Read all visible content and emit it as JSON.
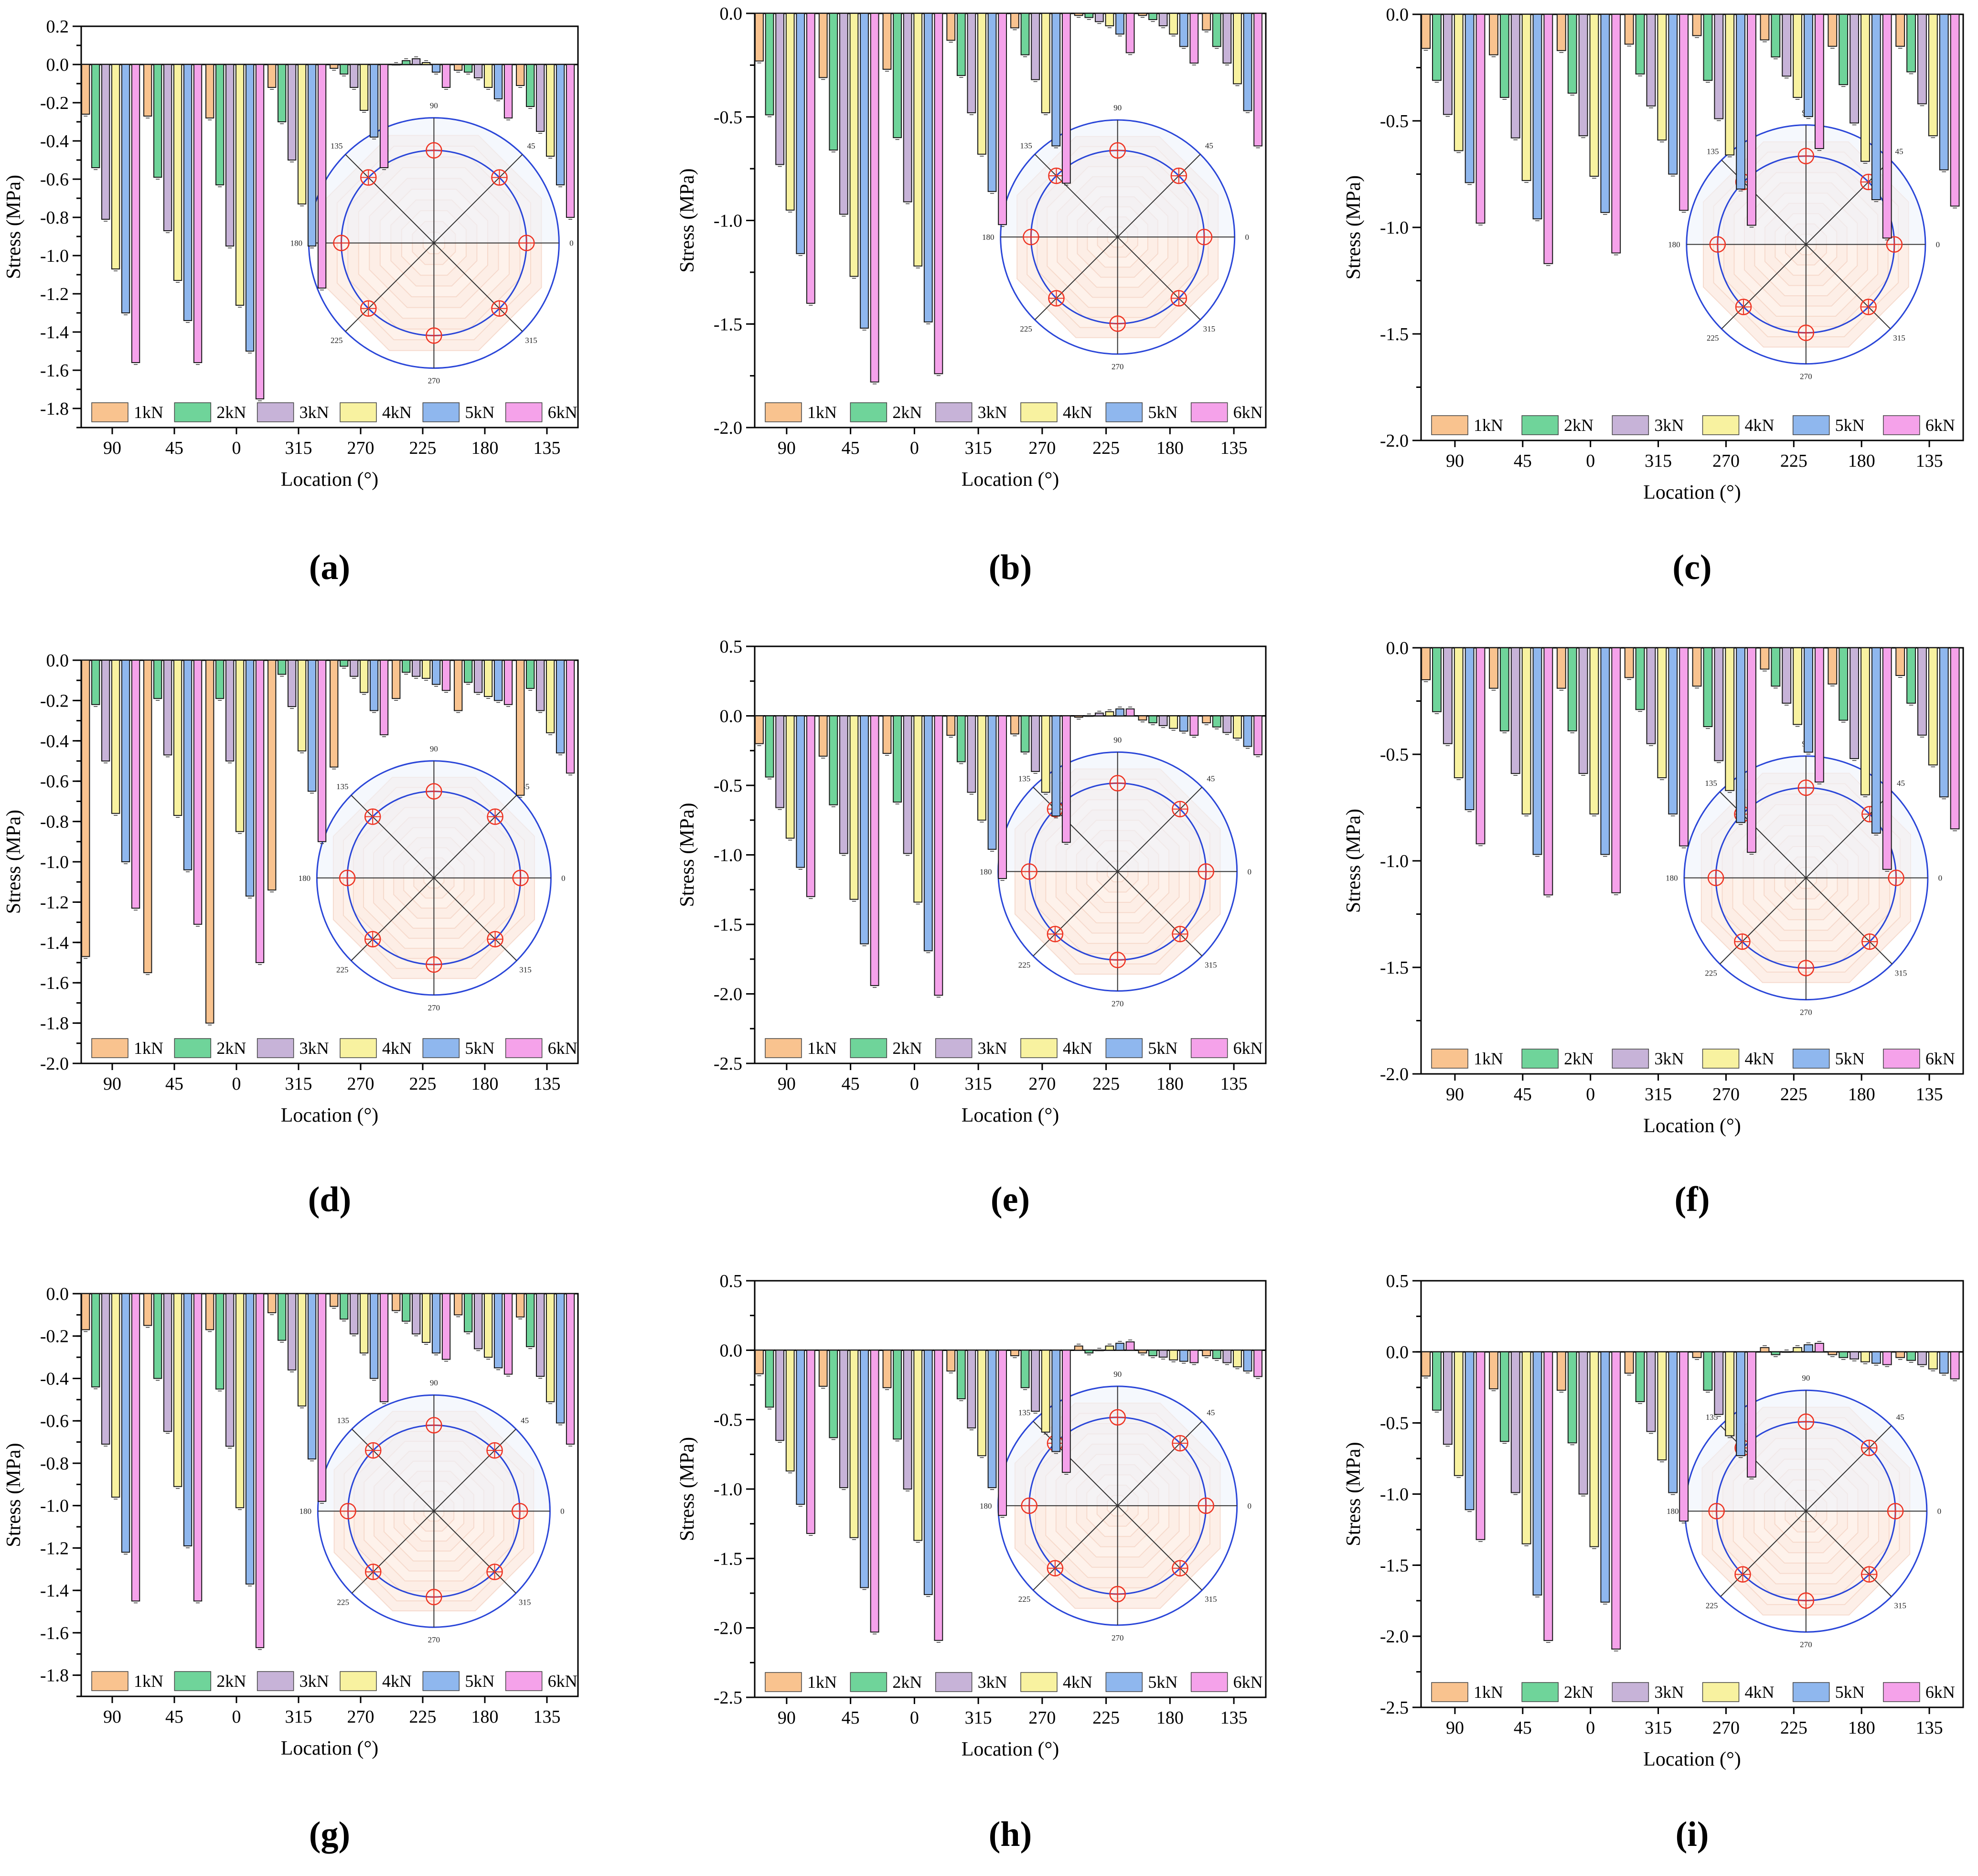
{
  "figure": {
    "legend_series": [
      "1kN",
      "2kN",
      "3kN",
      "4kN",
      "5kN",
      "6kN"
    ],
    "categories": [
      "90",
      "45",
      "0",
      "315",
      "270",
      "225",
      "180",
      "135"
    ],
    "polar_labels": [
      "90",
      "45",
      "0",
      "315",
      "270",
      "225",
      "180",
      "135"
    ],
    "series_colors": [
      "#f9c38f",
      "#6fd49a",
      "#c7b3d8",
      "#f8f2a0",
      "#8fb7ee",
      "#f5a2ea"
    ],
    "bar_edge_color": "#1a1a1a",
    "polar_circle_color": "#2a46d8",
    "marker_color": "#ee3322"
  },
  "chart_data": [
    {
      "type": "bar",
      "label": "(a)",
      "xlabel": "Location (°)",
      "ylabel": "Stress (MPa)",
      "ylim": [
        -1.9,
        0.2
      ],
      "yticks": [
        0.2,
        0.0,
        -0.2,
        -0.4,
        -0.6,
        -0.8,
        -1.0,
        -1.2,
        -1.4,
        -1.6,
        -1.8
      ],
      "categories": [
        "90",
        "45",
        "0",
        "315",
        "270",
        "225",
        "180",
        "135"
      ],
      "series": [
        {
          "name": "1kN",
          "values": [
            -0.26,
            -0.27,
            -0.28,
            -0.12,
            -0.02,
            0.0,
            -0.03,
            -0.11
          ]
        },
        {
          "name": "2kN",
          "values": [
            -0.54,
            -0.59,
            -0.63,
            -0.3,
            -0.05,
            0.02,
            -0.04,
            -0.22
          ]
        },
        {
          "name": "3kN",
          "values": [
            -0.81,
            -0.87,
            -0.95,
            -0.5,
            -0.12,
            0.03,
            -0.07,
            -0.35
          ]
        },
        {
          "name": "4kN",
          "values": [
            -1.07,
            -1.13,
            -1.26,
            -0.73,
            -0.24,
            0.01,
            -0.12,
            -0.48
          ]
        },
        {
          "name": "5kN",
          "values": [
            -1.3,
            -1.34,
            -1.5,
            -0.95,
            -0.38,
            -0.04,
            -0.18,
            -0.63
          ]
        },
        {
          "name": "6kN",
          "values": [
            -1.56,
            -1.56,
            -1.75,
            -1.17,
            -0.54,
            -0.12,
            -0.28,
            -0.8
          ]
        }
      ]
    },
    {
      "type": "bar",
      "label": "(b)",
      "xlabel": "Location (°)",
      "ylabel": "Stress (MPa)",
      "ylim": [
        -2.0,
        0.0
      ],
      "yticks": [
        0.0,
        -0.5,
        -1.0,
        -1.5,
        -2.0
      ],
      "categories": [
        "90",
        "45",
        "0",
        "315",
        "270",
        "225",
        "180",
        "135"
      ],
      "series": [
        {
          "name": "1kN",
          "values": [
            -0.23,
            -0.31,
            -0.27,
            -0.13,
            -0.07,
            -0.01,
            -0.01,
            -0.08
          ]
        },
        {
          "name": "2kN",
          "values": [
            -0.49,
            -0.66,
            -0.6,
            -0.3,
            -0.2,
            -0.02,
            -0.03,
            -0.16
          ]
        },
        {
          "name": "3kN",
          "values": [
            -0.73,
            -0.97,
            -0.91,
            -0.48,
            -0.32,
            -0.04,
            -0.06,
            -0.24
          ]
        },
        {
          "name": "4kN",
          "values": [
            -0.95,
            -1.27,
            -1.22,
            -0.68,
            -0.48,
            -0.06,
            -0.1,
            -0.34
          ]
        },
        {
          "name": "5kN",
          "values": [
            -1.16,
            -1.52,
            -1.49,
            -0.86,
            -0.64,
            -0.1,
            -0.16,
            -0.47
          ]
        },
        {
          "name": "6kN",
          "values": [
            -1.4,
            -1.78,
            -1.74,
            -1.02,
            -0.82,
            -0.19,
            -0.24,
            -0.64
          ]
        }
      ]
    },
    {
      "type": "bar",
      "label": "(c)",
      "xlabel": "Location (°)",
      "ylabel": "Stress (MPa)",
      "ylim": [
        -2.0,
        0.0
      ],
      "yticks": [
        0.0,
        -0.5,
        -1.0,
        -1.5,
        -2.0
      ],
      "categories": [
        "90",
        "45",
        "0",
        "315",
        "270",
        "225",
        "180",
        "135"
      ],
      "series": [
        {
          "name": "1kN",
          "values": [
            -0.16,
            -0.19,
            -0.17,
            -0.14,
            -0.1,
            -0.12,
            -0.15,
            -0.15
          ]
        },
        {
          "name": "2kN",
          "values": [
            -0.31,
            -0.39,
            -0.37,
            -0.28,
            -0.31,
            -0.2,
            -0.33,
            -0.27
          ]
        },
        {
          "name": "3kN",
          "values": [
            -0.47,
            -0.58,
            -0.57,
            -0.43,
            -0.49,
            -0.29,
            -0.51,
            -0.42
          ]
        },
        {
          "name": "4kN",
          "values": [
            -0.64,
            -0.78,
            -0.76,
            -0.59,
            -0.66,
            -0.39,
            -0.69,
            -0.57
          ]
        },
        {
          "name": "5kN",
          "values": [
            -0.79,
            -0.96,
            -0.93,
            -0.75,
            -0.82,
            -0.48,
            -0.87,
            -0.73
          ]
        },
        {
          "name": "6kN",
          "values": [
            -0.98,
            -1.17,
            -1.12,
            -0.92,
            -0.99,
            -0.63,
            -1.05,
            -0.9
          ]
        }
      ]
    },
    {
      "type": "bar",
      "label": "(d)",
      "xlabel": "Location (°)",
      "ylabel": "Stress (MPa)",
      "ylim": [
        -2.0,
        0.0
      ],
      "yticks": [
        0.0,
        -0.2,
        -0.4,
        -0.6,
        -0.8,
        -1.0,
        -1.2,
        -1.4,
        -1.6,
        -1.8,
        -2.0
      ],
      "categories": [
        "90",
        "45",
        "0",
        "315",
        "270",
        "225",
        "180",
        "135"
      ],
      "series": [
        {
          "name": "1kN",
          "values": [
            -1.47,
            -1.55,
            -1.8,
            -1.14,
            -0.53,
            -0.19,
            -0.25,
            -0.67
          ]
        },
        {
          "name": "2kN",
          "values": [
            -0.22,
            -0.19,
            -0.19,
            -0.07,
            -0.03,
            -0.06,
            -0.11,
            -0.14
          ]
        },
        {
          "name": "3kN",
          "values": [
            -0.5,
            -0.47,
            -0.5,
            -0.23,
            -0.08,
            -0.08,
            -0.16,
            -0.25
          ]
        },
        {
          "name": "4kN",
          "values": [
            -0.76,
            -0.77,
            -0.85,
            -0.45,
            -0.16,
            -0.09,
            -0.18,
            -0.36
          ]
        },
        {
          "name": "5kN",
          "values": [
            -1.0,
            -1.04,
            -1.17,
            -0.65,
            -0.25,
            -0.12,
            -0.2,
            -0.46
          ]
        },
        {
          "name": "6kN",
          "values": [
            -1.23,
            -1.31,
            -1.5,
            -0.9,
            -0.37,
            -0.15,
            -0.22,
            -0.56
          ]
        }
      ]
    },
    {
      "type": "bar",
      "label": "(e)",
      "xlabel": "Location (°)",
      "ylabel": "Stress (MPa)",
      "ylim": [
        -2.5,
        0.5
      ],
      "yticks": [
        0.5,
        0.0,
        -0.5,
        -1.0,
        -1.5,
        -2.0,
        -2.5
      ],
      "categories": [
        "90",
        "45",
        "0",
        "315",
        "270",
        "225",
        "180",
        "135"
      ],
      "series": [
        {
          "name": "1kN",
          "values": [
            -0.2,
            -0.29,
            -0.27,
            -0.14,
            -0.13,
            -0.01,
            -0.03,
            -0.05
          ]
        },
        {
          "name": "2kN",
          "values": [
            -0.44,
            -0.64,
            -0.62,
            -0.33,
            -0.26,
            0.0,
            -0.05,
            -0.08
          ]
        },
        {
          "name": "3kN",
          "values": [
            -0.66,
            -0.99,
            -0.99,
            -0.55,
            -0.4,
            0.02,
            -0.07,
            -0.12
          ]
        },
        {
          "name": "4kN",
          "values": [
            -0.88,
            -1.32,
            -1.34,
            -0.75,
            -0.55,
            0.03,
            -0.09,
            -0.16
          ]
        },
        {
          "name": "5kN",
          "values": [
            -1.09,
            -1.64,
            -1.69,
            -0.96,
            -0.72,
            0.05,
            -0.11,
            -0.22
          ]
        },
        {
          "name": "6kN",
          "values": [
            -1.3,
            -1.94,
            -2.01,
            -1.17,
            -0.91,
            0.05,
            -0.14,
            -0.28
          ]
        }
      ]
    },
    {
      "type": "bar",
      "label": "(f)",
      "xlabel": "Location (°)",
      "ylabel": "Stress (MPa)",
      "ylim": [
        -2.0,
        0.0
      ],
      "yticks": [
        0.0,
        -0.5,
        -1.0,
        -1.5,
        -2.0
      ],
      "categories": [
        "90",
        "45",
        "0",
        "315",
        "270",
        "225",
        "180",
        "135"
      ],
      "series": [
        {
          "name": "1kN",
          "values": [
            -0.15,
            -0.19,
            -0.19,
            -0.14,
            -0.18,
            -0.1,
            -0.17,
            -0.13
          ]
        },
        {
          "name": "2kN",
          "values": [
            -0.3,
            -0.39,
            -0.39,
            -0.29,
            -0.37,
            -0.18,
            -0.34,
            -0.26
          ]
        },
        {
          "name": "3kN",
          "values": [
            -0.45,
            -0.59,
            -0.59,
            -0.45,
            -0.53,
            -0.26,
            -0.52,
            -0.41
          ]
        },
        {
          "name": "4kN",
          "values": [
            -0.61,
            -0.78,
            -0.78,
            -0.61,
            -0.67,
            -0.36,
            -0.69,
            -0.55
          ]
        },
        {
          "name": "5kN",
          "values": [
            -0.76,
            -0.97,
            -0.97,
            -0.78,
            -0.82,
            -0.49,
            -0.87,
            -0.7
          ]
        },
        {
          "name": "6kN",
          "values": [
            -0.92,
            -1.16,
            -1.15,
            -0.93,
            -0.96,
            -0.63,
            -1.04,
            -0.85
          ]
        }
      ]
    },
    {
      "type": "bar",
      "label": "(g)",
      "xlabel": "Location (°)",
      "ylabel": "Stress (MPa)",
      "ylim": [
        -1.9,
        0.0
      ],
      "yticks": [
        0.0,
        -0.2,
        -0.4,
        -0.6,
        -0.8,
        -1.0,
        -1.2,
        -1.4,
        -1.6,
        -1.8
      ],
      "categories": [
        "90",
        "45",
        "0",
        "315",
        "270",
        "225",
        "180",
        "135"
      ],
      "series": [
        {
          "name": "1kN",
          "values": [
            -0.17,
            -0.15,
            -0.17,
            -0.09,
            -0.06,
            -0.08,
            -0.1,
            -0.11
          ]
        },
        {
          "name": "2kN",
          "values": [
            -0.44,
            -0.4,
            -0.45,
            -0.22,
            -0.12,
            -0.13,
            -0.18,
            -0.25
          ]
        },
        {
          "name": "3kN",
          "values": [
            -0.71,
            -0.65,
            -0.72,
            -0.36,
            -0.19,
            -0.19,
            -0.26,
            -0.39
          ]
        },
        {
          "name": "4kN",
          "values": [
            -0.96,
            -0.91,
            -1.01,
            -0.53,
            -0.28,
            -0.23,
            -0.3,
            -0.51
          ]
        },
        {
          "name": "5kN",
          "values": [
            -1.22,
            -1.19,
            -1.37,
            -0.78,
            -0.4,
            -0.28,
            -0.35,
            -0.61
          ]
        },
        {
          "name": "6kN",
          "values": [
            -1.45,
            -1.45,
            -1.67,
            -0.98,
            -0.51,
            -0.31,
            -0.38,
            -0.71
          ]
        }
      ]
    },
    {
      "type": "bar",
      "label": "(h)",
      "xlabel": "Location (°)",
      "ylabel": "Stress (MPa)",
      "ylim": [
        -2.5,
        0.5
      ],
      "yticks": [
        0.5,
        0.0,
        -0.5,
        -1.0,
        -1.5,
        -2.0,
        -2.5
      ],
      "categories": [
        "90",
        "45",
        "0",
        "315",
        "270",
        "225",
        "180",
        "135"
      ],
      "series": [
        {
          "name": "1kN",
          "values": [
            -0.17,
            -0.26,
            -0.27,
            -0.15,
            -0.04,
            0.03,
            -0.02,
            -0.04
          ]
        },
        {
          "name": "2kN",
          "values": [
            -0.41,
            -0.63,
            -0.64,
            -0.35,
            -0.27,
            -0.02,
            -0.04,
            -0.06
          ]
        },
        {
          "name": "3kN",
          "values": [
            -0.65,
            -0.99,
            -1.0,
            -0.56,
            -0.44,
            0.0,
            -0.05,
            -0.09
          ]
        },
        {
          "name": "4kN",
          "values": [
            -0.87,
            -1.35,
            -1.37,
            -0.76,
            -0.59,
            0.03,
            -0.07,
            -0.12
          ]
        },
        {
          "name": "5kN",
          "values": [
            -1.11,
            -1.71,
            -1.76,
            -0.99,
            -0.73,
            0.05,
            -0.08,
            -0.15
          ]
        },
        {
          "name": "6kN",
          "values": [
            -1.32,
            -2.03,
            -2.09,
            -1.19,
            -0.88,
            0.06,
            -0.09,
            -0.19
          ]
        }
      ]
    },
    {
      "type": "bar",
      "label": "(i)",
      "xlabel": "Location (°)",
      "ylabel": "Stress (MPa)",
      "ylim": [
        -2.5,
        0.5
      ],
      "yticks": [
        0.5,
        0.0,
        -0.5,
        -1.0,
        -1.5,
        -2.0,
        -2.5
      ],
      "categories": [
        "90",
        "45",
        "0",
        "315",
        "270",
        "225",
        "180",
        "135"
      ],
      "series": [
        {
          "name": "1kN",
          "values": [
            -0.17,
            -0.26,
            -0.27,
            -0.15,
            -0.04,
            0.03,
            -0.02,
            -0.04
          ]
        },
        {
          "name": "2kN",
          "values": [
            -0.41,
            -0.63,
            -0.64,
            -0.35,
            -0.27,
            -0.02,
            -0.04,
            -0.06
          ]
        },
        {
          "name": "3kN",
          "values": [
            -0.65,
            -0.99,
            -1.0,
            -0.56,
            -0.44,
            0.0,
            -0.05,
            -0.09
          ]
        },
        {
          "name": "4kN",
          "values": [
            -0.87,
            -1.35,
            -1.37,
            -0.76,
            -0.59,
            0.03,
            -0.07,
            -0.12
          ]
        },
        {
          "name": "5kN",
          "values": [
            -1.11,
            -1.71,
            -1.76,
            -0.99,
            -0.73,
            0.05,
            -0.08,
            -0.15
          ]
        },
        {
          "name": "6kN",
          "values": [
            -1.32,
            -2.03,
            -2.09,
            -1.19,
            -0.88,
            0.06,
            -0.09,
            -0.19
          ]
        }
      ]
    }
  ]
}
